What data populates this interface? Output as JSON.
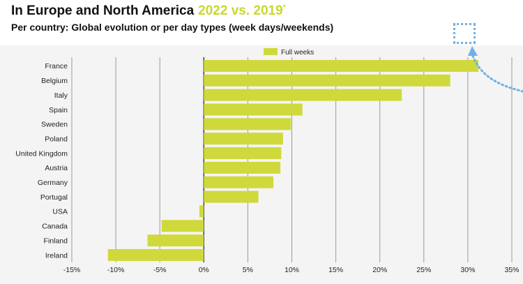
{
  "header": {
    "title_main": "In Europe and North America",
    "title_accent": "2022 vs. 2019",
    "title_sup": "*",
    "subtitle": "Per country: Global evolution or per day types (week days/weekends)"
  },
  "colors": {
    "bar": "#cfd93c",
    "accent": "#c9d82b",
    "annotation": "#6fb1e6",
    "panel": "#f4f4f4",
    "grid": "#9a9a9a"
  },
  "chart_data": {
    "type": "bar",
    "orientation": "horizontal",
    "title": "In Europe and North America 2022 vs. 2019*",
    "subtitle": "Per country: Global evolution or per day types (week days/weekends)",
    "categories": [
      "France",
      "Belgium",
      "Italy",
      "Spain",
      "Sweden",
      "Poland",
      "United Kingdom",
      "Austria",
      "Germany",
      "Portugal",
      "USA",
      "Canada",
      "Finland",
      "Ireland"
    ],
    "series": [
      {
        "name": "Full weeks",
        "values": [
          31.2,
          28.0,
          22.5,
          11.2,
          9.9,
          9.0,
          8.8,
          8.7,
          7.9,
          6.2,
          -0.5,
          -4.8,
          -6.4,
          -10.9
        ]
      }
    ],
    "xlim": [
      -15,
      35
    ],
    "xticks": [
      -15,
      -10,
      -5,
      0,
      5,
      10,
      15,
      20,
      25,
      30,
      35
    ],
    "xtick_labels": [
      "-15%",
      "-10%",
      "-5%",
      "0%",
      "5%",
      "10%",
      "15%",
      "20%",
      "25%",
      "30%",
      "35%"
    ],
    "grid": true,
    "legend": "top-center"
  }
}
